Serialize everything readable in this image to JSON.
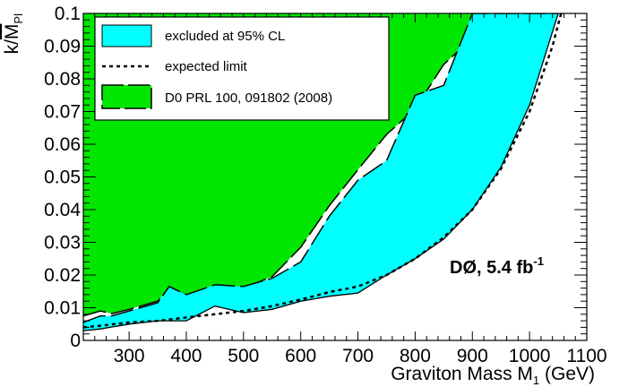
{
  "chart_data": {
    "type": "area",
    "xlabel_main": "Graviton Mass M",
    "xlabel_sub": "1",
    "xlabel_unit": " (GeV)",
    "ylabel_k": "k/",
    "ylabel_m": "M",
    "ylabel_sub": "Pl",
    "xlim": [
      220,
      1100
    ],
    "ylim": [
      0,
      0.1
    ],
    "xticks": [
      300,
      400,
      500,
      600,
      700,
      800,
      900,
      1000,
      1100
    ],
    "xtick_labels": [
      "300",
      "400",
      "500",
      "600",
      "700",
      "800",
      "900",
      "1000",
      "1100"
    ],
    "yticks": [
      0,
      0.01,
      0.02,
      0.03,
      0.04,
      0.05,
      0.06,
      0.07,
      0.08,
      0.09,
      0.1
    ],
    "ytick_labels": [
      "0",
      "0.01",
      "0.02",
      "0.03",
      "0.04",
      "0.05",
      "0.06",
      "0.07",
      "0.08",
      "0.09",
      "0.1"
    ],
    "annotation": {
      "main": "DØ, 5.4 fb",
      "sup": "-1"
    },
    "legend": [
      {
        "label": "excluded at 95% CL",
        "style": "fill",
        "color": "#00ffff"
      },
      {
        "label": "expected limit",
        "style": "dotted-line",
        "color": "#000000"
      },
      {
        "label": "D0 PRL 100, 091802 (2008)",
        "style": "fill-dashed",
        "color": "#00e600"
      }
    ],
    "series": [
      {
        "name": "D0 PRL 100, 091802 (2008)",
        "color": "#00e600",
        "x": [
          220,
          250,
          270,
          300,
          350,
          370,
          400,
          450,
          500,
          550,
          600,
          650,
          700,
          750,
          800,
          850,
          900,
          925
        ],
        "y": [
          0.0075,
          0.009,
          0.0082,
          0.0095,
          0.012,
          0.016,
          0.014,
          0.0165,
          0.016,
          0.0195,
          0.0285,
          0.0412,
          0.0522,
          0.063,
          0.0708,
          0.0844,
          0.0924,
          0.1
        ]
      },
      {
        "name": "excluded at 95% CL",
        "color": "#00ffff",
        "upper_x": [
          220,
          250,
          270,
          300,
          350,
          370,
          400,
          450,
          500,
          550,
          600,
          650,
          700,
          750,
          800,
          850,
          900,
          950,
          1000,
          1050
        ],
        "upper_y": [
          0.0055,
          0.0075,
          0.0075,
          0.009,
          0.0115,
          0.0165,
          0.014,
          0.017,
          0.0165,
          0.019,
          0.024,
          0.038,
          0.049,
          0.055,
          0.075,
          0.078,
          0.1,
          0.1,
          0.1,
          0.1
        ],
        "lower_x": [
          220,
          250,
          300,
          350,
          400,
          450,
          500,
          550,
          600,
          650,
          700,
          750,
          800,
          850,
          900,
          950,
          1000,
          1050
        ],
        "lower_y": [
          0.003,
          0.0035,
          0.005,
          0.006,
          0.006,
          0.0105,
          0.0085,
          0.0095,
          0.012,
          0.0135,
          0.0145,
          0.02,
          0.025,
          0.031,
          0.04,
          0.053,
          0.072,
          0.1
        ]
      },
      {
        "name": "expected limit",
        "color": "#000000",
        "x": [
          220,
          250,
          300,
          350,
          400,
          450,
          500,
          550,
          600,
          650,
          700,
          750,
          800,
          850,
          900,
          950,
          1000,
          1040,
          1055
        ],
        "y": [
          0.004,
          0.0045,
          0.0055,
          0.006,
          0.007,
          0.008,
          0.009,
          0.0105,
          0.0125,
          0.0148,
          0.0165,
          0.02,
          0.025,
          0.0315,
          0.04,
          0.0525,
          0.07,
          0.09,
          0.1
        ]
      }
    ]
  }
}
